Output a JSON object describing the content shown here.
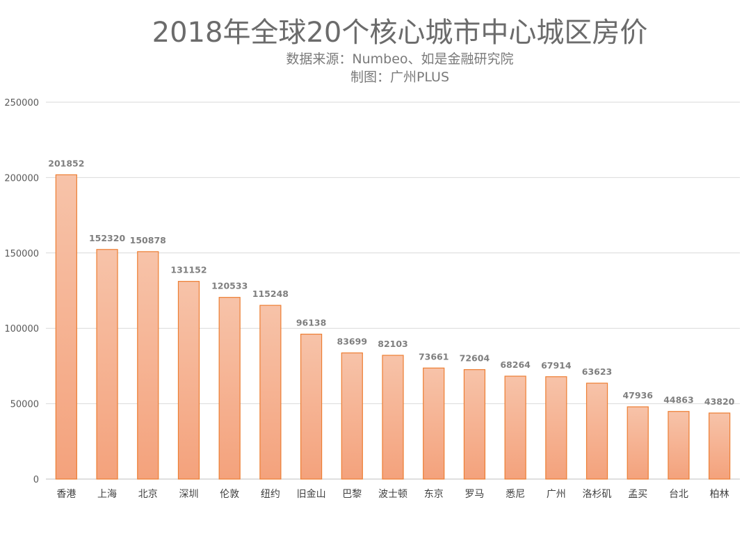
{
  "chart_data": {
    "type": "bar",
    "title": "2018年全球20个核心城市中心城区房价",
    "subtitle_lines": [
      "数据来源：Numbeo、如是金融研究院",
      "制图：广州PLUS"
    ],
    "categories": [
      "香港",
      "上海",
      "北京",
      "深圳",
      "伦敦",
      "纽约",
      "旧金山",
      "巴黎",
      "波士顿",
      "东京",
      "罗马",
      "悉尼",
      "广州",
      "洛杉矶",
      "孟买",
      "台北",
      "柏林"
    ],
    "values": [
      201852,
      152320,
      150878,
      131152,
      120533,
      115248,
      96138,
      83699,
      82103,
      73661,
      72604,
      68264,
      67914,
      63623,
      47936,
      44863,
      43820
    ],
    "ylim": [
      0,
      250000
    ],
    "yticks": [
      0,
      50000,
      100000,
      150000,
      200000,
      250000
    ],
    "ytick_labels": [
      "0",
      "50000",
      "100000",
      "150000",
      "200000",
      "250000"
    ],
    "grid": true,
    "data_labels": true,
    "colors": {
      "bar_top": "#f7c3a9",
      "bar_bottom": "#f4a27c",
      "bar_edge": "#ed7d31",
      "grid": "#d9d9d9"
    }
  }
}
